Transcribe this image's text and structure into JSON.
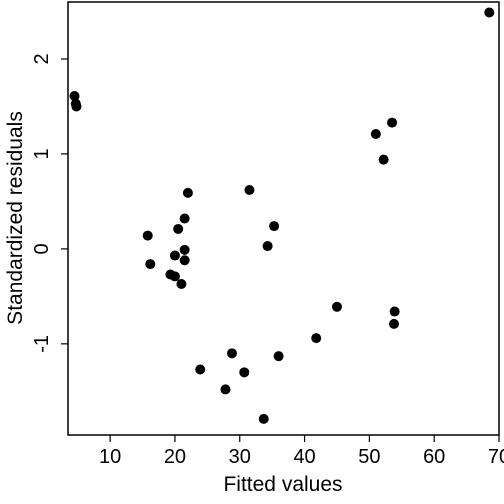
{
  "chart_data": {
    "type": "scatter",
    "title": "",
    "xlabel": "Fitted values",
    "ylabel": "Standardized residuals",
    "xlim": [
      3.5,
      70
    ],
    "ylim": [
      -1.96,
      2.6
    ],
    "x_ticks": [
      10,
      20,
      30,
      40,
      50,
      60,
      70
    ],
    "y_ticks": [
      -1,
      0,
      1,
      2
    ],
    "grid": false,
    "series": [
      {
        "x": [
          68.5,
          4.5,
          4.7,
          4.8,
          53.5,
          51.0,
          52.2,
          22.0,
          31.5,
          21.5,
          35.3,
          20.5,
          15.8,
          34.3,
          21.5,
          20.0,
          16.2,
          21.5,
          19.3,
          20.0,
          21.0,
          45.0,
          53.9,
          53.8,
          41.8,
          28.8,
          36.0,
          23.9,
          30.7,
          27.8,
          33.7
        ],
        "y": [
          2.49,
          1.61,
          1.53,
          1.5,
          1.33,
          1.21,
          0.94,
          0.59,
          0.62,
          0.32,
          0.24,
          0.21,
          0.14,
          0.03,
          -0.01,
          -0.07,
          -0.16,
          -0.12,
          -0.27,
          -0.29,
          -0.37,
          -0.61,
          -0.66,
          -0.79,
          -0.94,
          -1.1,
          -1.13,
          -1.27,
          -1.3,
          -1.48,
          -1.79
        ]
      }
    ]
  }
}
